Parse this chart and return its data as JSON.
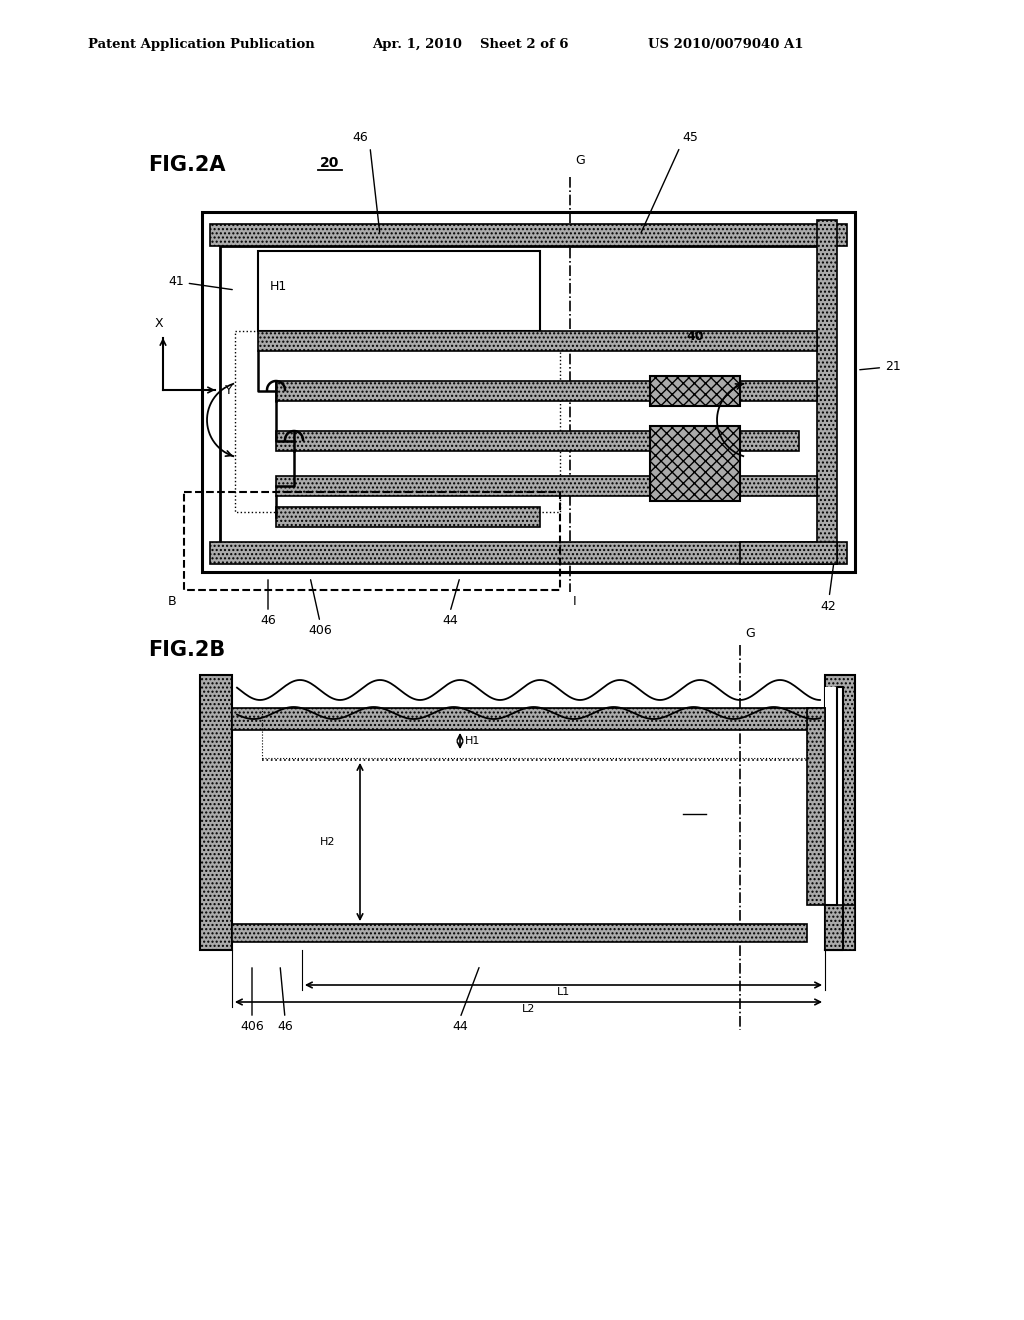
{
  "bg_color": "#ffffff",
  "header_text": "Patent Application Publication",
  "header_date": "Apr. 1, 2010",
  "header_sheet": "Sheet 2 of 6",
  "header_patent": "US 2010/0079040 A1",
  "fig2a_label": "FIG.2A",
  "fig2b_label": "FIG.2B",
  "gray_hatch": "#aaaaaa",
  "gray_dark": "#777777",
  "gray_med": "#999999",
  "black": "#000000",
  "white": "#ffffff"
}
